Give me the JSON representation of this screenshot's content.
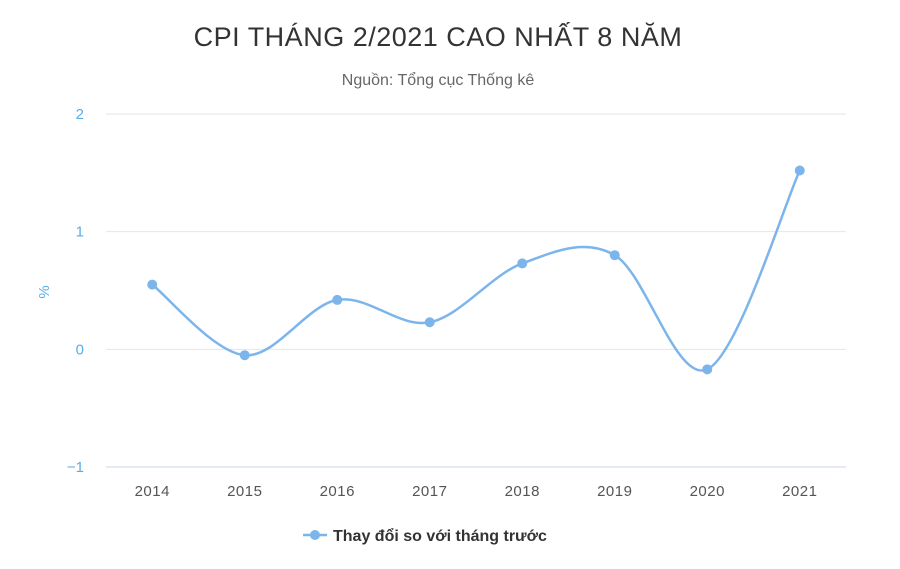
{
  "title": "CPI THÁNG 2/2021 CAO NHẤT 8 NĂM",
  "subtitle": "Nguồn: Tổng cục Thống kê",
  "chart_data": {
    "type": "line",
    "smooth": true,
    "title": "CPI THÁNG 2/2021 CAO NHẤT 8 NĂM",
    "subtitle": "Nguồn: Tổng cục Thống kê",
    "xlabel": "",
    "ylabel": "%",
    "categories": [
      "2014",
      "2015",
      "2016",
      "2017",
      "2018",
      "2019",
      "2020",
      "2021"
    ],
    "series": [
      {
        "name": "Thay đổi so với tháng trước",
        "values": [
          0.55,
          -0.05,
          0.42,
          0.23,
          0.73,
          0.8,
          -0.17,
          1.52
        ]
      }
    ],
    "ylim": [
      -1,
      2
    ],
    "yticks": [
      "2",
      "1",
      "0",
      "−1"
    ],
    "ytick_values": [
      2,
      1,
      0,
      -1
    ],
    "grid": true,
    "legend_position": "bottom-center",
    "colors": {
      "series": "#7cb5ec",
      "grid": "#e6e6e6",
      "axis": "#ccd6eb",
      "ytick": "#5aaee8"
    }
  }
}
